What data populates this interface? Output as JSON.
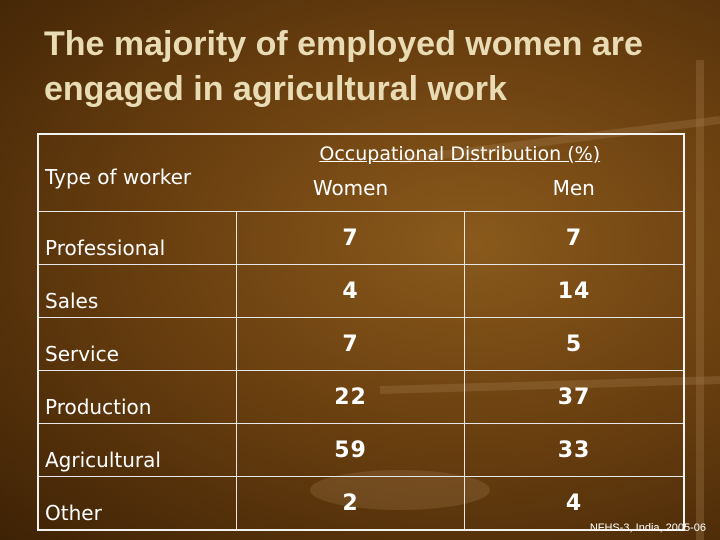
{
  "title": "The majority of employed women are engaged in agricultural work",
  "table": {
    "group_header": "Occupational Distribution (%)",
    "columns": [
      "Type of worker",
      "Women",
      "Men"
    ],
    "rows": [
      [
        "Professional",
        7,
        7
      ],
      [
        "Sales",
        4,
        14
      ],
      [
        "Service",
        7,
        5
      ],
      [
        "Production",
        22,
        37
      ],
      [
        "Agricultural",
        59,
        33
      ],
      [
        "Other",
        2,
        4
      ]
    ]
  },
  "source": "NFHS-3, India, 2005-06"
}
